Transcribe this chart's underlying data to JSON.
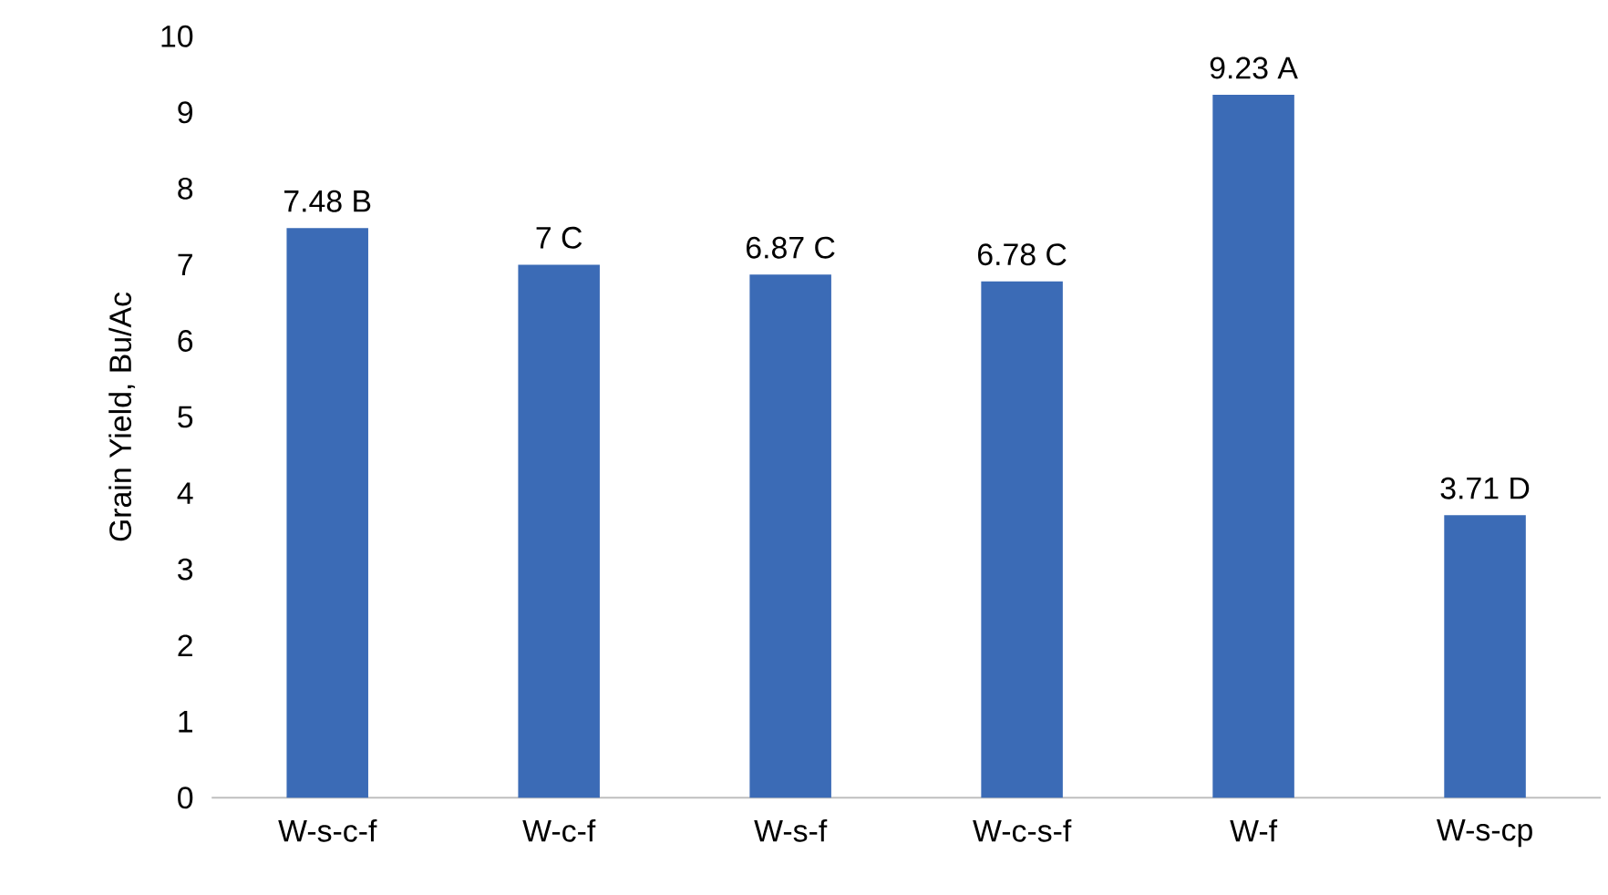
{
  "chart_data": {
    "type": "bar",
    "ylabel": "Grain Yield, Bu/Ac",
    "categories": [
      "W-s-c-f",
      "W-c-f",
      "W-s-f",
      "W-c-s-f",
      "W-f",
      "W-s-cp"
    ],
    "values": [
      7.48,
      7,
      6.87,
      6.78,
      9.23,
      3.71
    ],
    "value_labels": [
      "7.48 B",
      "7 C",
      "6.87 C",
      "6.78 C",
      "9.23 A",
      "3.71 D"
    ],
    "color": "#3b6bb6",
    "ylim": [
      0,
      10
    ],
    "yticks": [
      0,
      1,
      2,
      3,
      4,
      5,
      6,
      7,
      8,
      9,
      10
    ]
  }
}
